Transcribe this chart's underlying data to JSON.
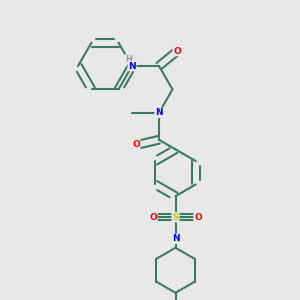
{
  "bg_color": "#e8e8e8",
  "bond_color": "#3a7a65",
  "N_color": "#0000ff",
  "O_color": "#ff0000",
  "S_color": "#cccc00",
  "H_color": "#8899aa",
  "line_width": 1.5,
  "figsize": [
    3.0,
    3.0
  ],
  "dpi": 100,
  "xlim": [
    0,
    10
  ],
  "ylim": [
    0,
    10
  ]
}
